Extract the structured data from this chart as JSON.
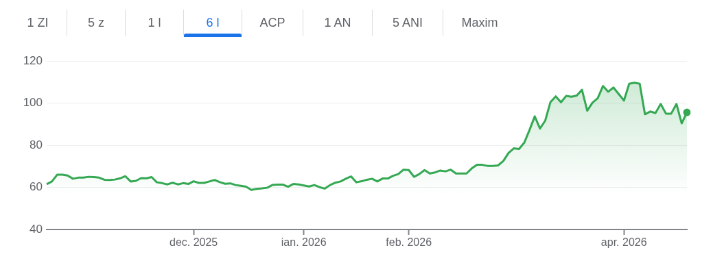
{
  "chart_data": {
    "type": "area",
    "annotations": [
      "1 ZI",
      "5 z",
      "1 l",
      "6 l",
      "ACP",
      "1 AN",
      "5 ANI",
      "Maxim"
    ],
    "categories": [
      null,
      null,
      null,
      null,
      null,
      null,
      null,
      null,
      null,
      null,
      null,
      null,
      null,
      null,
      null,
      null,
      null,
      null,
      null,
      null,
      null,
      null,
      null,
      null,
      null,
      null,
      null,
      null,
      "dec. 2025",
      null,
      null,
      null,
      null,
      null,
      null,
      null,
      null,
      null,
      null,
      null,
      null,
      null,
      null,
      null,
      null,
      null,
      null,
      null,
      null,
      "ian. 2026",
      null,
      null,
      null,
      null,
      null,
      null,
      null,
      null,
      null,
      null,
      null,
      null,
      null,
      null,
      null,
      null,
      null,
      null,
      null,
      "feb. 2026",
      null,
      null,
      null,
      null,
      null,
      null,
      null,
      null,
      null,
      null,
      null,
      null,
      null,
      null,
      null,
      null,
      null,
      null,
      null,
      null,
      null,
      null,
      null,
      null,
      null,
      null,
      null,
      null,
      null,
      null,
      null,
      null,
      null,
      null,
      null,
      null,
      null,
      null,
      null,
      null,
      "apr. 2026",
      null,
      null,
      null,
      null,
      null,
      null,
      null,
      null,
      null,
      null,
      null,
      null
    ],
    "series": [
      {
        "color": "#34a853",
        "values": [
          61.5,
          62.8,
          66.0,
          66.0,
          65.6,
          64.1,
          64.6,
          64.6,
          65.0,
          64.9,
          64.6,
          63.6,
          63.5,
          63.7,
          64.3,
          65.3,
          62.8,
          63.1,
          64.4,
          64.3,
          64.9,
          62.4,
          62.0,
          61.4,
          62.2,
          61.4,
          62.0,
          61.6,
          62.9,
          62.1,
          62.1,
          62.8,
          63.5,
          62.5,
          61.7,
          61.9,
          61.1,
          60.7,
          60.3,
          58.8,
          59.3,
          59.5,
          59.8,
          61.1,
          61.3,
          61.3,
          60.3,
          61.6,
          61.4,
          60.9,
          60.4,
          61.1,
          60.1,
          59.4,
          61.1,
          62.2,
          62.8,
          64.1,
          65.2,
          62.4,
          62.9,
          63.6,
          64.1,
          62.8,
          64.2,
          64.2,
          65.5,
          66.3,
          68.4,
          68.2,
          65.0,
          66.3,
          68.2,
          66.6,
          67.1,
          68.0,
          67.6,
          68.4,
          66.6,
          66.6,
          66.6,
          69.0,
          70.7,
          70.7,
          70.2,
          70.2,
          70.4,
          72.5,
          76.3,
          78.5,
          78.2,
          81.2,
          87.2,
          93.7,
          87.9,
          91.7,
          100.5,
          103.2,
          100.4,
          103.4,
          103.0,
          103.6,
          106.3,
          96.4,
          100.2,
          102.3,
          108.1,
          105.4,
          107.4,
          104.3,
          101.2,
          109.2,
          109.7,
          109.2,
          94.7,
          96.0,
          95.3,
          99.6,
          95.0,
          95.0,
          99.6,
          90.4,
          95.6
        ]
      }
    ],
    "ylim": [
      40,
      120
    ],
    "yticks": [
      40,
      60,
      80,
      100,
      120
    ],
    "grid": "y"
  }
}
